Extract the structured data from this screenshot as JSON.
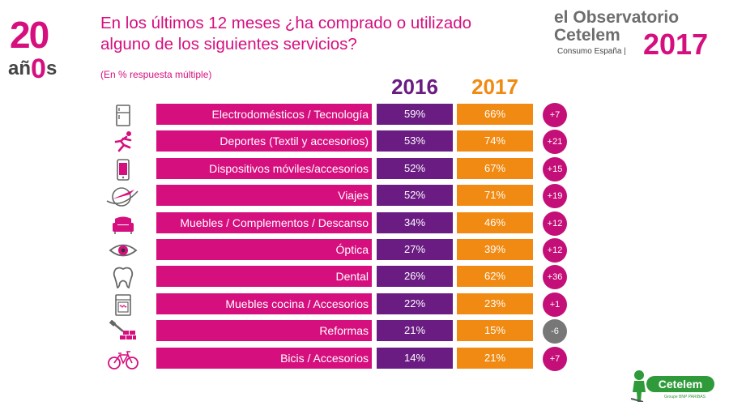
{
  "header": {
    "title": "En los últimos 12 meses ¿ha comprado o utilizado alguno de los siguientes servicios?",
    "subtitle": "(En % respuesta múltiple)"
  },
  "logo20": {
    "num": "20",
    "word_a": "añ",
    "word_o": "0",
    "word_s": "s"
  },
  "observatorio": {
    "line1_el": "el",
    "line1": "Observatorio",
    "line2": "Cetelem",
    "line3": "Consumo España |",
    "year": "2017"
  },
  "brand": {
    "name": "Cetelem",
    "tagline": "Groupe BNP PARIBAS"
  },
  "colors": {
    "magenta": "#d60f7f",
    "purple": "#6a1c82",
    "orange": "#f08a12",
    "negative": "#777777"
  },
  "chart_data": {
    "type": "table",
    "title": "En los últimos 12 meses ¿ha comprado o utilizado alguno de los siguientes servicios?",
    "subtitle": "(En % respuesta múltiple)",
    "columns": [
      "2016",
      "2017"
    ],
    "rows": [
      {
        "icon": "fridge-icon",
        "label": "Electrodomésticos / Tecnología",
        "v2016": "59%",
        "v2017": "66%",
        "diff": "+7"
      },
      {
        "icon": "runner-icon",
        "label": "Deportes (Textil y accesorios)",
        "v2016": "53%",
        "v2017": "74%",
        "diff": "+21"
      },
      {
        "icon": "mobile-phone-icon",
        "label": "Dispositivos móviles/accesorios",
        "v2016": "52%",
        "v2017": "67%",
        "diff": "+15"
      },
      {
        "icon": "plane-globe-icon",
        "label": "Viajes",
        "v2016": "52%",
        "v2017": "71%",
        "diff": "+19"
      },
      {
        "icon": "armchair-icon",
        "label": "Muebles / Complementos / Descanso",
        "v2016": "34%",
        "v2017": "46%",
        "diff": "+12"
      },
      {
        "icon": "eye-icon",
        "label": "Óptica",
        "v2016": "27%",
        "v2017": "39%",
        "diff": "+12"
      },
      {
        "icon": "tooth-icon",
        "label": "Dental",
        "v2016": "26%",
        "v2017": "62%",
        "diff": "+36"
      },
      {
        "icon": "oven-icon",
        "label": "Muebles cocina / Accesorios",
        "v2016": "22%",
        "v2017": "23%",
        "diff": "+1"
      },
      {
        "icon": "brick-wall-icon",
        "label": "Reformas",
        "v2016": "21%",
        "v2017": "15%",
        "diff": "-6"
      },
      {
        "icon": "bicycle-icon",
        "label": "Bicis / Accesorios",
        "v2016": "14%",
        "v2017": "21%",
        "diff": "+7"
      }
    ]
  }
}
